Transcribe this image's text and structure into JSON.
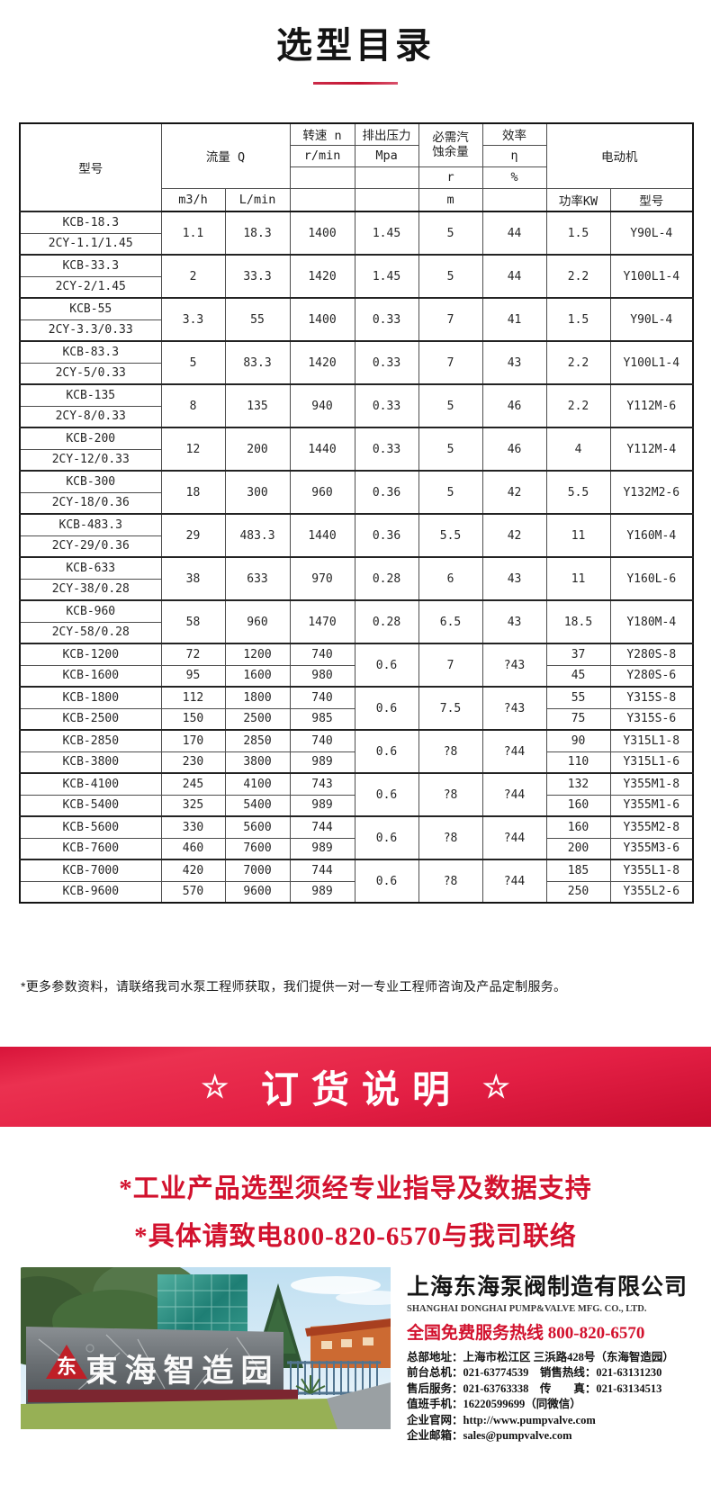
{
  "title": "选型目录",
  "colors": {
    "accent_red": "#d2122e",
    "banner_red": "#e31f44",
    "underline_red": "#c41531"
  },
  "table": {
    "header": {
      "model": "型号",
      "flow": "流量 Q",
      "flow_unit_m3h": "m3/h",
      "flow_unit_lmin": "L/min",
      "speed": "转速 n",
      "speed_unit": "r/min",
      "pressure": "排出压力",
      "pressure_unit": "Mpa",
      "npsh1": "必需汽",
      "npsh2": "蚀余量",
      "npsh_r": "r",
      "npsh_m": "m",
      "eff": "效率",
      "eff_sym": "η",
      "eff_pct": "%",
      "motor": "电动机",
      "motor_power": "功率KW",
      "motor_model": "型号"
    },
    "dual_groups": [
      {
        "model1": "KCB-18.3",
        "model2": "2CY-1.1/1.45",
        "m3h": "1.1",
        "lmin": "18.3",
        "rpm": "1400",
        "mpa": "1.45",
        "npsh": "5",
        "eff": "44",
        "kw": "1.5",
        "motor": "Y90L-4"
      },
      {
        "model1": "KCB-33.3",
        "model2": "2CY-2/1.45",
        "m3h": "2",
        "lmin": "33.3",
        "rpm": "1420",
        "mpa": "1.45",
        "npsh": "5",
        "eff": "44",
        "kw": "2.2",
        "motor": "Y100L1-4"
      },
      {
        "model1": "KCB-55",
        "model2": "2CY-3.3/0.33",
        "m3h": "3.3",
        "lmin": "55",
        "rpm": "1400",
        "mpa": "0.33",
        "npsh": "7",
        "eff": "41",
        "kw": "1.5",
        "motor": "Y90L-4"
      },
      {
        "model1": "KCB-83.3",
        "model2": "2CY-5/0.33",
        "m3h": "5",
        "lmin": "83.3",
        "rpm": "1420",
        "mpa": "0.33",
        "npsh": "7",
        "eff": "43",
        "kw": "2.2",
        "motor": "Y100L1-4"
      },
      {
        "model1": "KCB-135",
        "model2": "2CY-8/0.33",
        "m3h": "8",
        "lmin": "135",
        "rpm": "940",
        "mpa": "0.33",
        "npsh": "5",
        "eff": "46",
        "kw": "2.2",
        "motor": "Y112M-6"
      },
      {
        "model1": "KCB-200",
        "model2": "2CY-12/0.33",
        "m3h": "12",
        "lmin": "200",
        "rpm": "1440",
        "mpa": "0.33",
        "npsh": "5",
        "eff": "46",
        "kw": "4",
        "motor": "Y112M-4"
      },
      {
        "model1": "KCB-300",
        "model2": "2CY-18/0.36",
        "m3h": "18",
        "lmin": "300",
        "rpm": "960",
        "mpa": "0.36",
        "npsh": "5",
        "eff": "42",
        "kw": "5.5",
        "motor": "Y132M2-6"
      },
      {
        "model1": "KCB-483.3",
        "model2": "2CY-29/0.36",
        "m3h": "29",
        "lmin": "483.3",
        "rpm": "1440",
        "mpa": "0.36",
        "npsh": "5.5",
        "eff": "42",
        "kw": "11",
        "motor": "Y160M-4"
      },
      {
        "model1": "KCB-633",
        "model2": "2CY-38/0.28",
        "m3h": "38",
        "lmin": "633",
        "rpm": "970",
        "mpa": "0.28",
        "npsh": "6",
        "eff": "43",
        "kw": "11",
        "motor": "Y160L-6"
      },
      {
        "model1": "KCB-960",
        "model2": "2CY-58/0.28",
        "m3h": "58",
        "lmin": "960",
        "rpm": "1470",
        "mpa": "0.28",
        "npsh": "6.5",
        "eff": "43",
        "kw": "18.5",
        "motor": "Y180M-4"
      }
    ],
    "single_groups": [
      {
        "mpa": "0.6",
        "npsh": "7",
        "eff": "?43",
        "rows": [
          {
            "model": "KCB-1200",
            "m3h": "72",
            "lmin": "1200",
            "rpm": "740",
            "kw": "37",
            "motor": "Y280S-8"
          },
          {
            "model": "KCB-1600",
            "m3h": "95",
            "lmin": "1600",
            "rpm": "980",
            "kw": "45",
            "motor": "Y280S-6"
          }
        ]
      },
      {
        "mpa": "0.6",
        "npsh": "7.5",
        "eff": "?43",
        "rows": [
          {
            "model": "KCB-1800",
            "m3h": "112",
            "lmin": "1800",
            "rpm": "740",
            "kw": "55",
            "motor": "Y315S-8"
          },
          {
            "model": "KCB-2500",
            "m3h": "150",
            "lmin": "2500",
            "rpm": "985",
            "kw": "75",
            "motor": "Y315S-6"
          }
        ]
      },
      {
        "mpa": "0.6",
        "npsh": "?8",
        "eff": "?44",
        "rows": [
          {
            "model": "KCB-2850",
            "m3h": "170",
            "lmin": "2850",
            "rpm": "740",
            "kw": "90",
            "motor": "Y315L1-8"
          },
          {
            "model": "KCB-3800",
            "m3h": "230",
            "lmin": "3800",
            "rpm": "989",
            "kw": "110",
            "motor": "Y315L1-6"
          }
        ]
      },
      {
        "mpa": "0.6",
        "npsh": "?8",
        "eff": "?44",
        "rows": [
          {
            "model": "KCB-4100",
            "m3h": "245",
            "lmin": "4100",
            "rpm": "743",
            "kw": "132",
            "motor": "Y355M1-8"
          },
          {
            "model": "KCB-5400",
            "m3h": "325",
            "lmin": "5400",
            "rpm": "989",
            "kw": "160",
            "motor": "Y355M1-6"
          }
        ]
      },
      {
        "mpa": "0.6",
        "npsh": "?8",
        "eff": "?44",
        "rows": [
          {
            "model": "KCB-5600",
            "m3h": "330",
            "lmin": "5600",
            "rpm": "744",
            "kw": "160",
            "motor": "Y355M2-8"
          },
          {
            "model": "KCB-7600",
            "m3h": "460",
            "lmin": "7600",
            "rpm": "989",
            "kw": "200",
            "motor": "Y355M3-6"
          }
        ]
      },
      {
        "mpa": "0.6",
        "npsh": "?8",
        "eff": "?44",
        "rows": [
          {
            "model": "KCB-7000",
            "m3h": "420",
            "lmin": "7000",
            "rpm": "744",
            "kw": "185",
            "motor": "Y355L1-8"
          },
          {
            "model": "KCB-9600",
            "m3h": "570",
            "lmin": "9600",
            "rpm": "989",
            "kw": "250",
            "motor": "Y355L2-6"
          }
        ]
      }
    ]
  },
  "footnote": "*更多参数资料，请联络我司水泵工程师获取，我们提供一对一专业工程师咨询及产品定制服务。",
  "banner": {
    "star_left": "☆",
    "text": "订货说明",
    "star_right": "☆"
  },
  "notice_line1": "*工业产品选型须经专业指导及数据支持",
  "notice_line2": "*具体请致电800-820-6570与我司联络",
  "company": {
    "name": "上海东海泵阀制造有限公司",
    "name_en": "SHANGHAI DONGHAI PUMP&VALVE MFG. CO., LTD.",
    "hotline_label": "全国免费服务热线",
    "hotline_number": "800-820-6570",
    "contacts": [
      "总部地址：上海市松江区 三浜路428号（东海智造园）",
      "前台总机：021-63774539　销售热线：021-63131230",
      "售后服务：021-63763338　传　　真：021-63134513",
      "值班手机：16220599699（同微信）",
      "企业官网：http://www.pumpvalve.com",
      "企业邮箱：sales@pumpvalve.com"
    ]
  },
  "photo": {
    "sign": "東海智造园",
    "logo_char": "东"
  }
}
